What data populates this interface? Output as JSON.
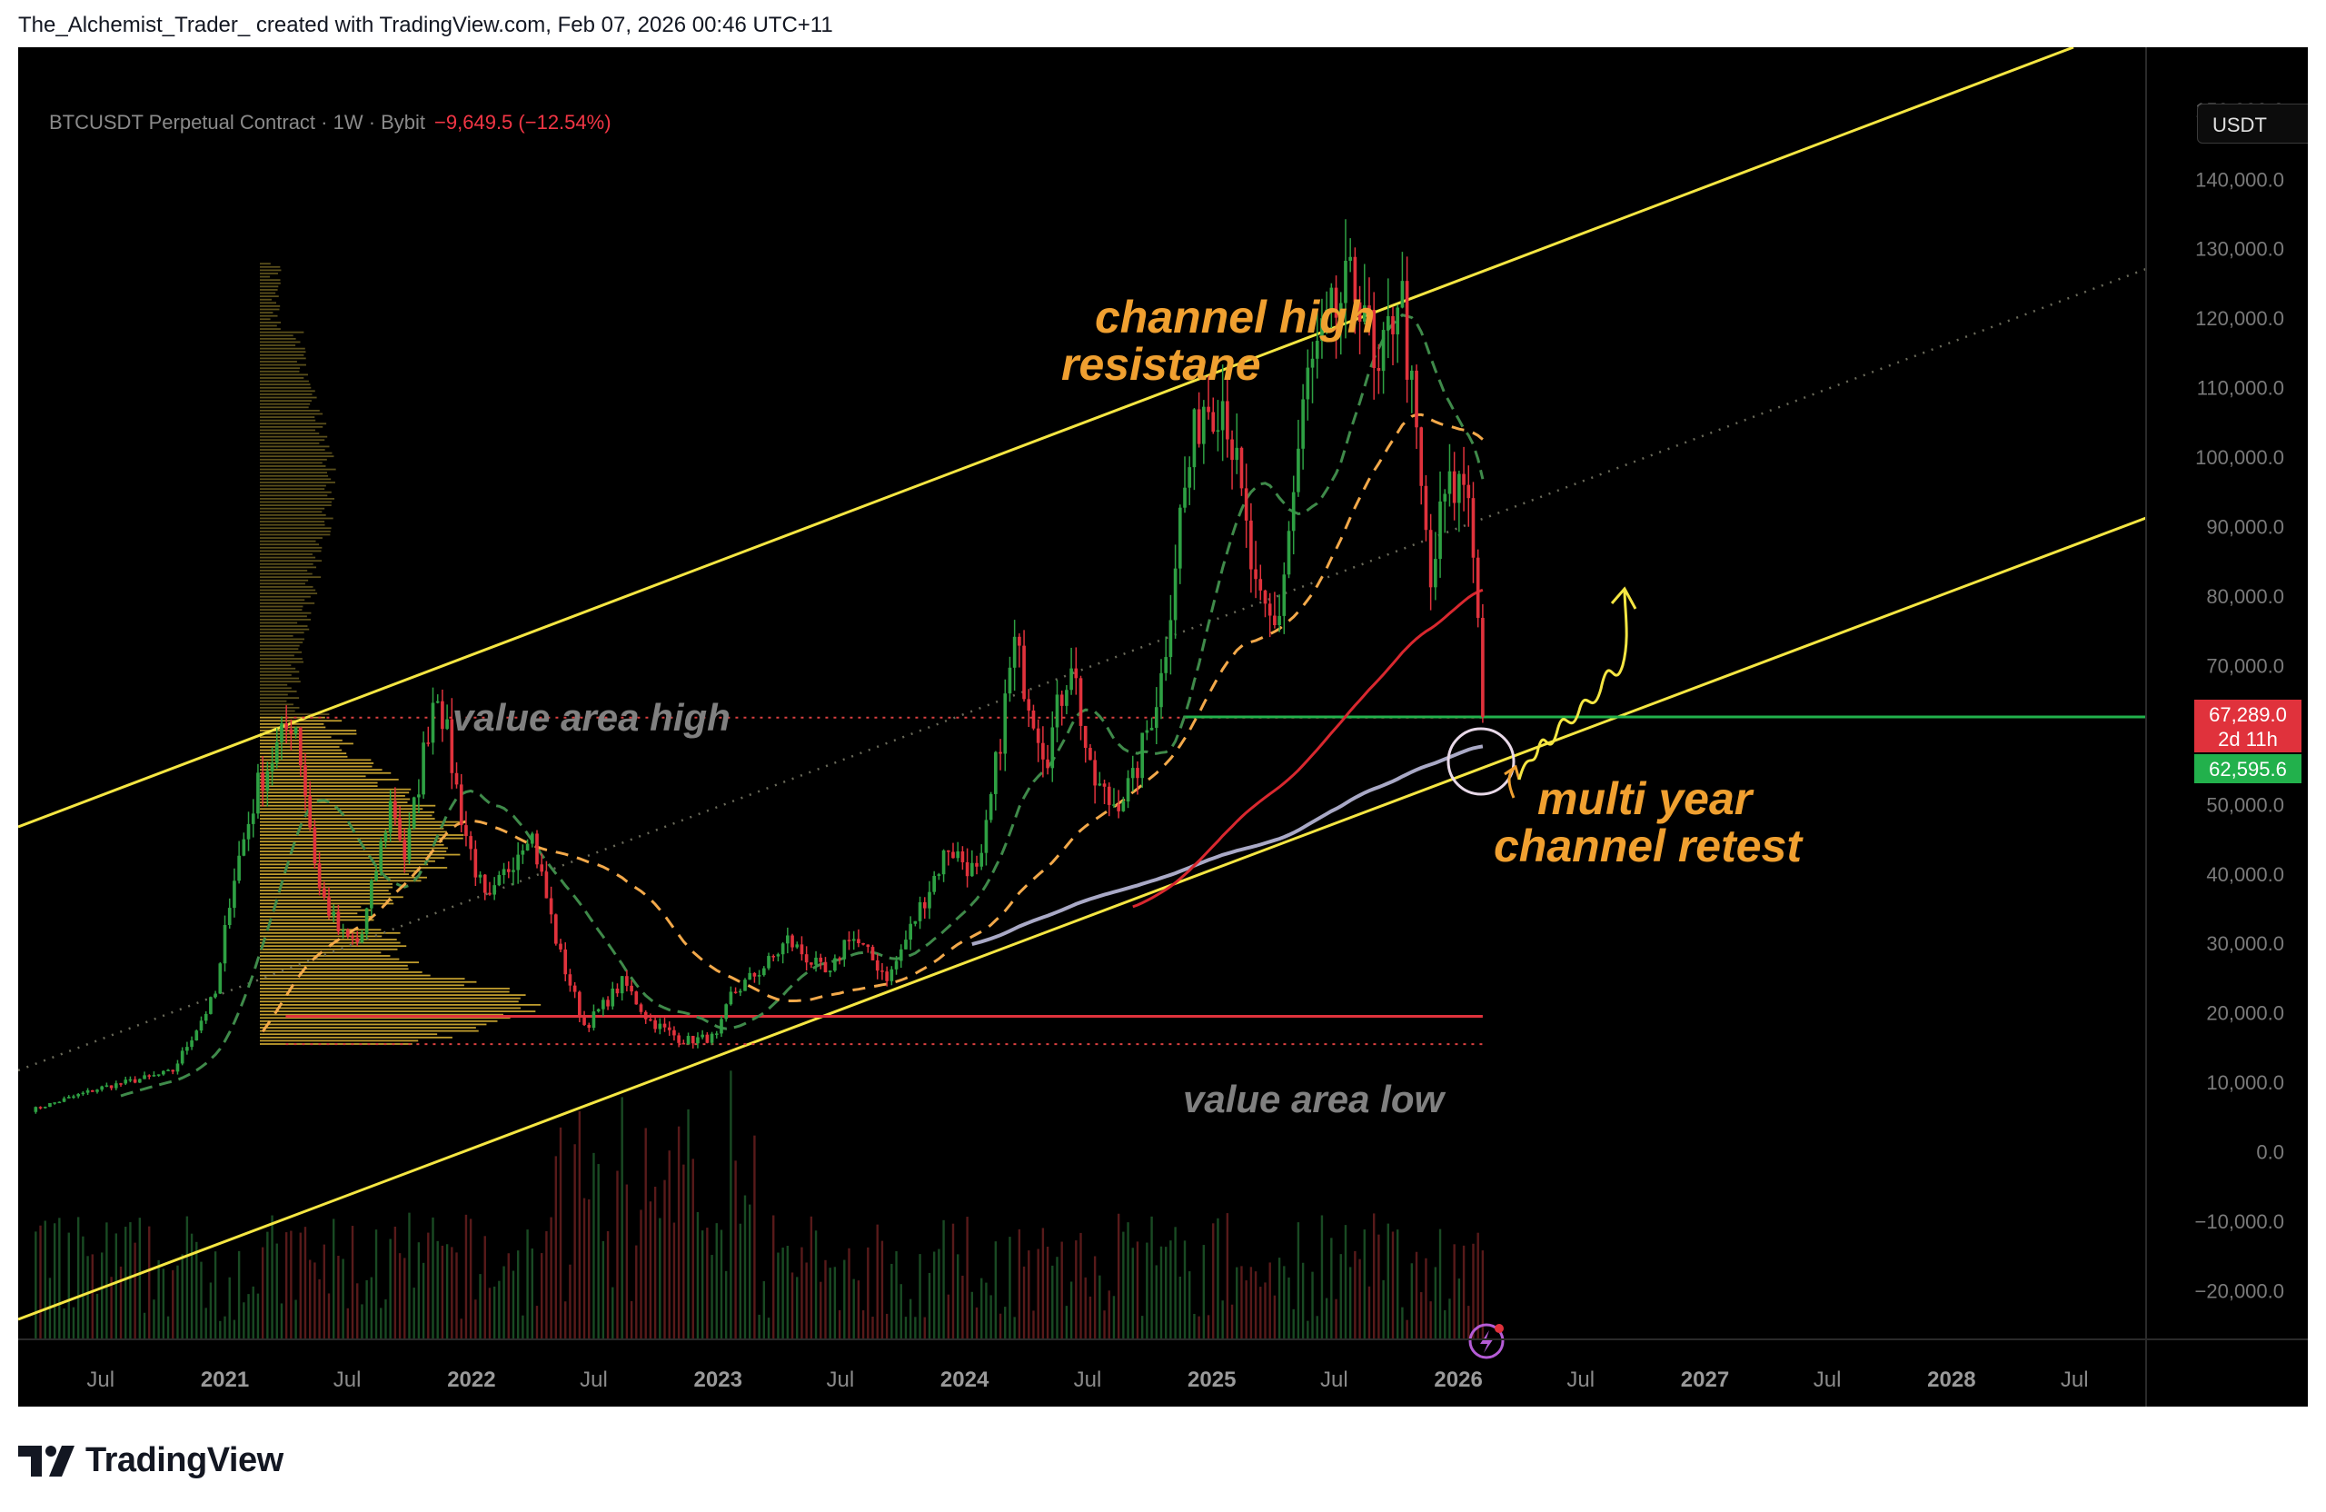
{
  "credit": "The_Alchemist_Trader_ created with TradingView.com, Feb 07, 2026 00:46 UTC+11",
  "symbol": {
    "title": "BTCUSDT Perpetual Contract · 1W · Bybit",
    "change": "−9,649.5 (−12.54%)"
  },
  "currency_button": "USDT",
  "brand": "TradingView",
  "price_tags": {
    "current_price": "67,289.0",
    "countdown": "2d 11h",
    "level": "62,595.6"
  },
  "colors": {
    "background": "#000000",
    "channel": "#f5e642",
    "annotation": "#f0a030",
    "bull": "#2ea043",
    "bear": "#e0323c",
    "level_line": "#22b14c",
    "support_line": "#e0323c",
    "value_area_label": "#808080"
  },
  "chart_data": {
    "type": "candlestick",
    "title": "BTCUSDT Perpetual Contract · 1W · Bybit",
    "y_axis": {
      "ticks": [
        "150,000.0",
        "140,000.0",
        "130,000.0",
        "120,000.0",
        "110,000.0",
        "100,000.0",
        "90,000.0",
        "80,000.0",
        "70,000.0",
        "60,000.0",
        "50,000.0",
        "40,000.0",
        "30,000.0",
        "20,000.0",
        "10,000.0",
        "0.0",
        "−10,000.0",
        "−20,000.0"
      ],
      "tick_values": [
        150000,
        140000,
        130000,
        120000,
        110000,
        100000,
        90000,
        80000,
        70000,
        60000,
        50000,
        40000,
        30000,
        20000,
        10000,
        0,
        -10000,
        -20000
      ],
      "ylim": [
        -27000,
        159000
      ]
    },
    "x_axis": {
      "tick_labels": [
        "Jul",
        "2021",
        "Jul",
        "2022",
        "Jul",
        "2023",
        "Jul",
        "2024",
        "Jul",
        "2025",
        "Jul",
        "2026",
        "Jul",
        "2027",
        "Jul",
        "2028",
        "Jul"
      ],
      "tick_dates": [
        "2020-07-01",
        "2021-01-01",
        "2021-07-01",
        "2022-01-01",
        "2022-07-01",
        "2023-01-01",
        "2023-07-01",
        "2024-01-01",
        "2024-07-01",
        "2025-01-01",
        "2025-07-01",
        "2026-01-01",
        "2026-07-01",
        "2027-01-01",
        "2027-07-01",
        "2028-01-01",
        "2028-07-01"
      ],
      "bold_labels": [
        "2021",
        "2022",
        "2023",
        "2024",
        "2025",
        "2026",
        "2027",
        "2028"
      ],
      "xlim": [
        "2020-03-01",
        "2028-10-15"
      ]
    },
    "price_path": [
      [
        "2020-03-20",
        6000
      ],
      [
        "2020-07-01",
        9200
      ],
      [
        "2020-10-15",
        11500
      ],
      [
        "2020-12-20",
        23000
      ],
      [
        "2021-01-10",
        38000
      ],
      [
        "2021-02-20",
        53000
      ],
      [
        "2021-04-14",
        63000
      ],
      [
        "2021-05-20",
        38000
      ],
      [
        "2021-06-22",
        31000
      ],
      [
        "2021-07-20",
        30000
      ],
      [
        "2021-09-05",
        51000
      ],
      [
        "2021-09-25",
        42000
      ],
      [
        "2021-11-10",
        68000
      ],
      [
        "2021-12-20",
        47000
      ],
      [
        "2022-01-24",
        35000
      ],
      [
        "2022-03-28",
        47000
      ],
      [
        "2022-05-10",
        29000
      ],
      [
        "2022-06-18",
        18000
      ],
      [
        "2022-08-14",
        24500
      ],
      [
        "2022-09-20",
        19000
      ],
      [
        "2022-11-10",
        16000
      ],
      [
        "2022-12-31",
        16500
      ],
      [
        "2023-01-20",
        22500
      ],
      [
        "2023-03-20",
        27500
      ],
      [
        "2023-04-14",
        30500
      ],
      [
        "2023-06-15",
        25000
      ],
      [
        "2023-07-13",
        31500
      ],
      [
        "2023-09-11",
        25000
      ],
      [
        "2023-10-24",
        34500
      ],
      [
        "2023-12-08",
        44000
      ],
      [
        "2024-01-23",
        39500
      ],
      [
        "2024-03-14",
        73000
      ],
      [
        "2024-05-01",
        57000
      ],
      [
        "2024-06-07",
        71500
      ],
      [
        "2024-07-05",
        54000
      ],
      [
        "2024-08-05",
        50000
      ],
      [
        "2024-09-06",
        53000
      ],
      [
        "2024-10-20",
        69000
      ],
      [
        "2024-11-14",
        91000
      ],
      [
        "2024-12-17",
        108000
      ],
      [
        "2025-01-20",
        109000
      ],
      [
        "2025-03-10",
        78000
      ],
      [
        "2025-04-07",
        75000
      ],
      [
        "2025-05-22",
        111000
      ],
      [
        "2025-07-14",
        123000
      ],
      [
        "2025-08-14",
        124500
      ],
      [
        "2025-09-01",
        108000
      ],
      [
        "2025-10-06",
        126000
      ],
      [
        "2025-11-21",
        81000
      ],
      [
        "2025-12-10",
        94000
      ],
      [
        "2026-01-14",
        97000
      ],
      [
        "2026-01-25",
        86000
      ],
      [
        "2026-02-06",
        62600
      ]
    ],
    "value_area_high": 62500,
    "value_area_low": 15500,
    "level_line": 62595.6,
    "support_line": 19500,
    "sma_red_start": [
      "2024-10-25",
      39500
    ],
    "annotations": [
      "channel high resistane",
      "value area high",
      "value area low",
      "multi year channel retest"
    ]
  },
  "annotations": {
    "channel_high_1": "channel high",
    "channel_high_2": "resistane",
    "value_area_high": "value area high",
    "value_area_low": "value area low",
    "retest_1": "multi year",
    "retest_2": "channel retest"
  }
}
